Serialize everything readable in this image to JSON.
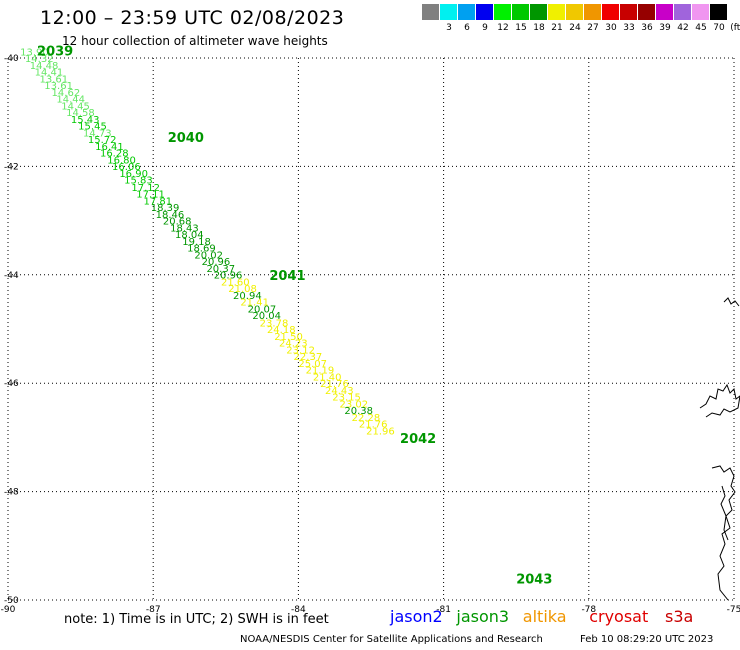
{
  "header": {
    "title": "12:00 – 23:59 UTC 02/08/2023",
    "subtitle": "12 hour collection of altimeter wave heights"
  },
  "scale": {
    "unit": "(ft)",
    "bins": [
      {
        "color": "#808080",
        "label": ""
      },
      {
        "color": "#00f0f0",
        "label": "3"
      },
      {
        "color": "#00a0f0",
        "label": "6"
      },
      {
        "color": "#0000f0",
        "label": "9"
      },
      {
        "color": "#00f000",
        "label": "12"
      },
      {
        "color": "#00c800",
        "label": "15"
      },
      {
        "color": "#009600",
        "label": "18"
      },
      {
        "color": "#f0f000",
        "label": "21"
      },
      {
        "color": "#f0c800",
        "label": "24"
      },
      {
        "color": "#f09600",
        "label": "27"
      },
      {
        "color": "#f00000",
        "label": "30"
      },
      {
        "color": "#c80000",
        "label": "33"
      },
      {
        "color": "#960000",
        "label": "36"
      },
      {
        "color": "#c800c8",
        "label": "39"
      },
      {
        "color": "#a064dc",
        "label": "42"
      },
      {
        "color": "#f096f0",
        "label": "45"
      },
      {
        "color": "#000000",
        "label": "70"
      }
    ]
  },
  "map": {
    "lat_labels": [
      "-40",
      "-42",
      "-44",
      "-46",
      "-48",
      "-50"
    ],
    "lon_labels": [
      "-90",
      "-87",
      "-84",
      "-81",
      "-78",
      "-75"
    ],
    "lon_range": [
      -90,
      -75
    ],
    "lat_range": [
      -50,
      -40
    ],
    "time_labels": [
      {
        "text": "2039",
        "lon": -89.4,
        "lat": -39.95
      },
      {
        "text": "2040",
        "lon": -86.7,
        "lat": -41.55
      },
      {
        "text": "2041",
        "lon": -84.6,
        "lat": -44.1
      },
      {
        "text": "2042",
        "lon": -81.9,
        "lat": -47.1
      },
      {
        "text": "2043",
        "lon": -79.5,
        "lat": -49.7
      }
    ],
    "track": [
      {
        "v": "13.90",
        "lon": -89.75,
        "lat": -39.95
      },
      {
        "v": "14.32",
        "lon": -89.65,
        "lat": -40.07
      },
      {
        "v": "14.48",
        "lon": -89.55,
        "lat": -40.2
      },
      {
        "v": "14.41",
        "lon": -89.45,
        "lat": -40.32
      },
      {
        "v": "13.61",
        "lon": -89.35,
        "lat": -40.45
      },
      {
        "v": "13.61",
        "lon": -89.25,
        "lat": -40.57
      },
      {
        "v": "14.62",
        "lon": -89.1,
        "lat": -40.7
      },
      {
        "v": "14.44",
        "lon": -89.0,
        "lat": -40.82
      },
      {
        "v": "14.45",
        "lon": -88.9,
        "lat": -40.95
      },
      {
        "v": "14.58",
        "lon": -88.8,
        "lat": -41.07
      },
      {
        "v": "15.43",
        "lon": -88.7,
        "lat": -41.2
      },
      {
        "v": "15.45",
        "lon": -88.55,
        "lat": -41.32
      },
      {
        "v": "14.73",
        "lon": -88.45,
        "lat": -41.45
      },
      {
        "v": "15.72",
        "lon": -88.35,
        "lat": -41.57
      },
      {
        "v": "16.41",
        "lon": -88.2,
        "lat": -41.7
      },
      {
        "v": "16.28",
        "lon": -88.1,
        "lat": -41.82
      },
      {
        "v": "16.80",
        "lon": -87.95,
        "lat": -41.95
      },
      {
        "v": "16.06",
        "lon": -87.85,
        "lat": -42.07
      },
      {
        "v": "16.90",
        "lon": -87.7,
        "lat": -42.2
      },
      {
        "v": "15.83",
        "lon": -87.6,
        "lat": -42.32
      },
      {
        "v": "17.12",
        "lon": -87.45,
        "lat": -42.45
      },
      {
        "v": "17.11",
        "lon": -87.35,
        "lat": -42.57
      },
      {
        "v": "17.81",
        "lon": -87.2,
        "lat": -42.7
      },
      {
        "v": "18.39",
        "lon": -87.05,
        "lat": -42.82
      },
      {
        "v": "18.46",
        "lon": -86.95,
        "lat": -42.95
      },
      {
        "v": "20.68",
        "lon": -86.8,
        "lat": -43.07
      },
      {
        "v": "18.43",
        "lon": -86.65,
        "lat": -43.2
      },
      {
        "v": "18.04",
        "lon": -86.55,
        "lat": -43.32
      },
      {
        "v": "19.18",
        "lon": -86.4,
        "lat": -43.45
      },
      {
        "v": "18.69",
        "lon": -86.3,
        "lat": -43.57
      },
      {
        "v": "20.02",
        "lon": -86.15,
        "lat": -43.7
      },
      {
        "v": "20.96",
        "lon": -86.0,
        "lat": -43.82
      },
      {
        "v": "20.37",
        "lon": -85.9,
        "lat": -43.95
      },
      {
        "v": "20.96",
        "lon": -85.75,
        "lat": -44.07
      },
      {
        "v": "21.60",
        "lon": -85.6,
        "lat": -44.2
      },
      {
        "v": "21.08",
        "lon": -85.45,
        "lat": -44.32
      },
      {
        "v": "20.94",
        "lon": -85.35,
        "lat": -44.45
      },
      {
        "v": "21.41",
        "lon": -85.2,
        "lat": -44.57
      },
      {
        "v": "20.07",
        "lon": -85.05,
        "lat": -44.7
      },
      {
        "v": "20.04",
        "lon": -84.95,
        "lat": -44.82
      },
      {
        "v": "23.78",
        "lon": -84.8,
        "lat": -44.95
      },
      {
        "v": "24.18",
        "lon": -84.65,
        "lat": -45.07
      },
      {
        "v": "21.50",
        "lon": -84.5,
        "lat": -45.2
      },
      {
        "v": "24.23",
        "lon": -84.4,
        "lat": -45.32
      },
      {
        "v": "23.12",
        "lon": -84.25,
        "lat": -45.45
      },
      {
        "v": "22.37",
        "lon": -84.1,
        "lat": -45.57
      },
      {
        "v": "25.07",
        "lon": -84.0,
        "lat": -45.7
      },
      {
        "v": "21.19",
        "lon": -83.85,
        "lat": -45.82
      },
      {
        "v": "21.40",
        "lon": -83.7,
        "lat": -45.95
      },
      {
        "v": "21.76",
        "lon": -83.55,
        "lat": -46.07
      },
      {
        "v": "24.43",
        "lon": -83.45,
        "lat": -46.2
      },
      {
        "v": "23.15",
        "lon": -83.3,
        "lat": -46.32
      },
      {
        "v": "23.02",
        "lon": -83.15,
        "lat": -46.45
      },
      {
        "v": "20.38",
        "lon": -83.05,
        "lat": -46.57
      },
      {
        "v": "22.28",
        "lon": -82.9,
        "lat": -46.7
      },
      {
        "v": "21.76",
        "lon": -82.75,
        "lat": -46.82
      },
      {
        "v": "21.96",
        "lon": -82.6,
        "lat": -46.95
      }
    ]
  },
  "notes": "note:  1) Time is in UTC; 2) SWH is in feet",
  "satellites": [
    {
      "name": "jason2",
      "color": "#0000ff"
    },
    {
      "name": "jason3",
      "color": "#009600"
    },
    {
      "name": "altika",
      "color": "#f09600"
    },
    {
      "name": "cryosat",
      "color": "#e00000"
    },
    {
      "name": "s3a",
      "color": "#c80000"
    }
  ],
  "footer": {
    "credit": "NOAA/NESDIS Center for Satellite Applications and Research",
    "timestamp": "Feb 10 08:29:20 UTC 2023"
  }
}
